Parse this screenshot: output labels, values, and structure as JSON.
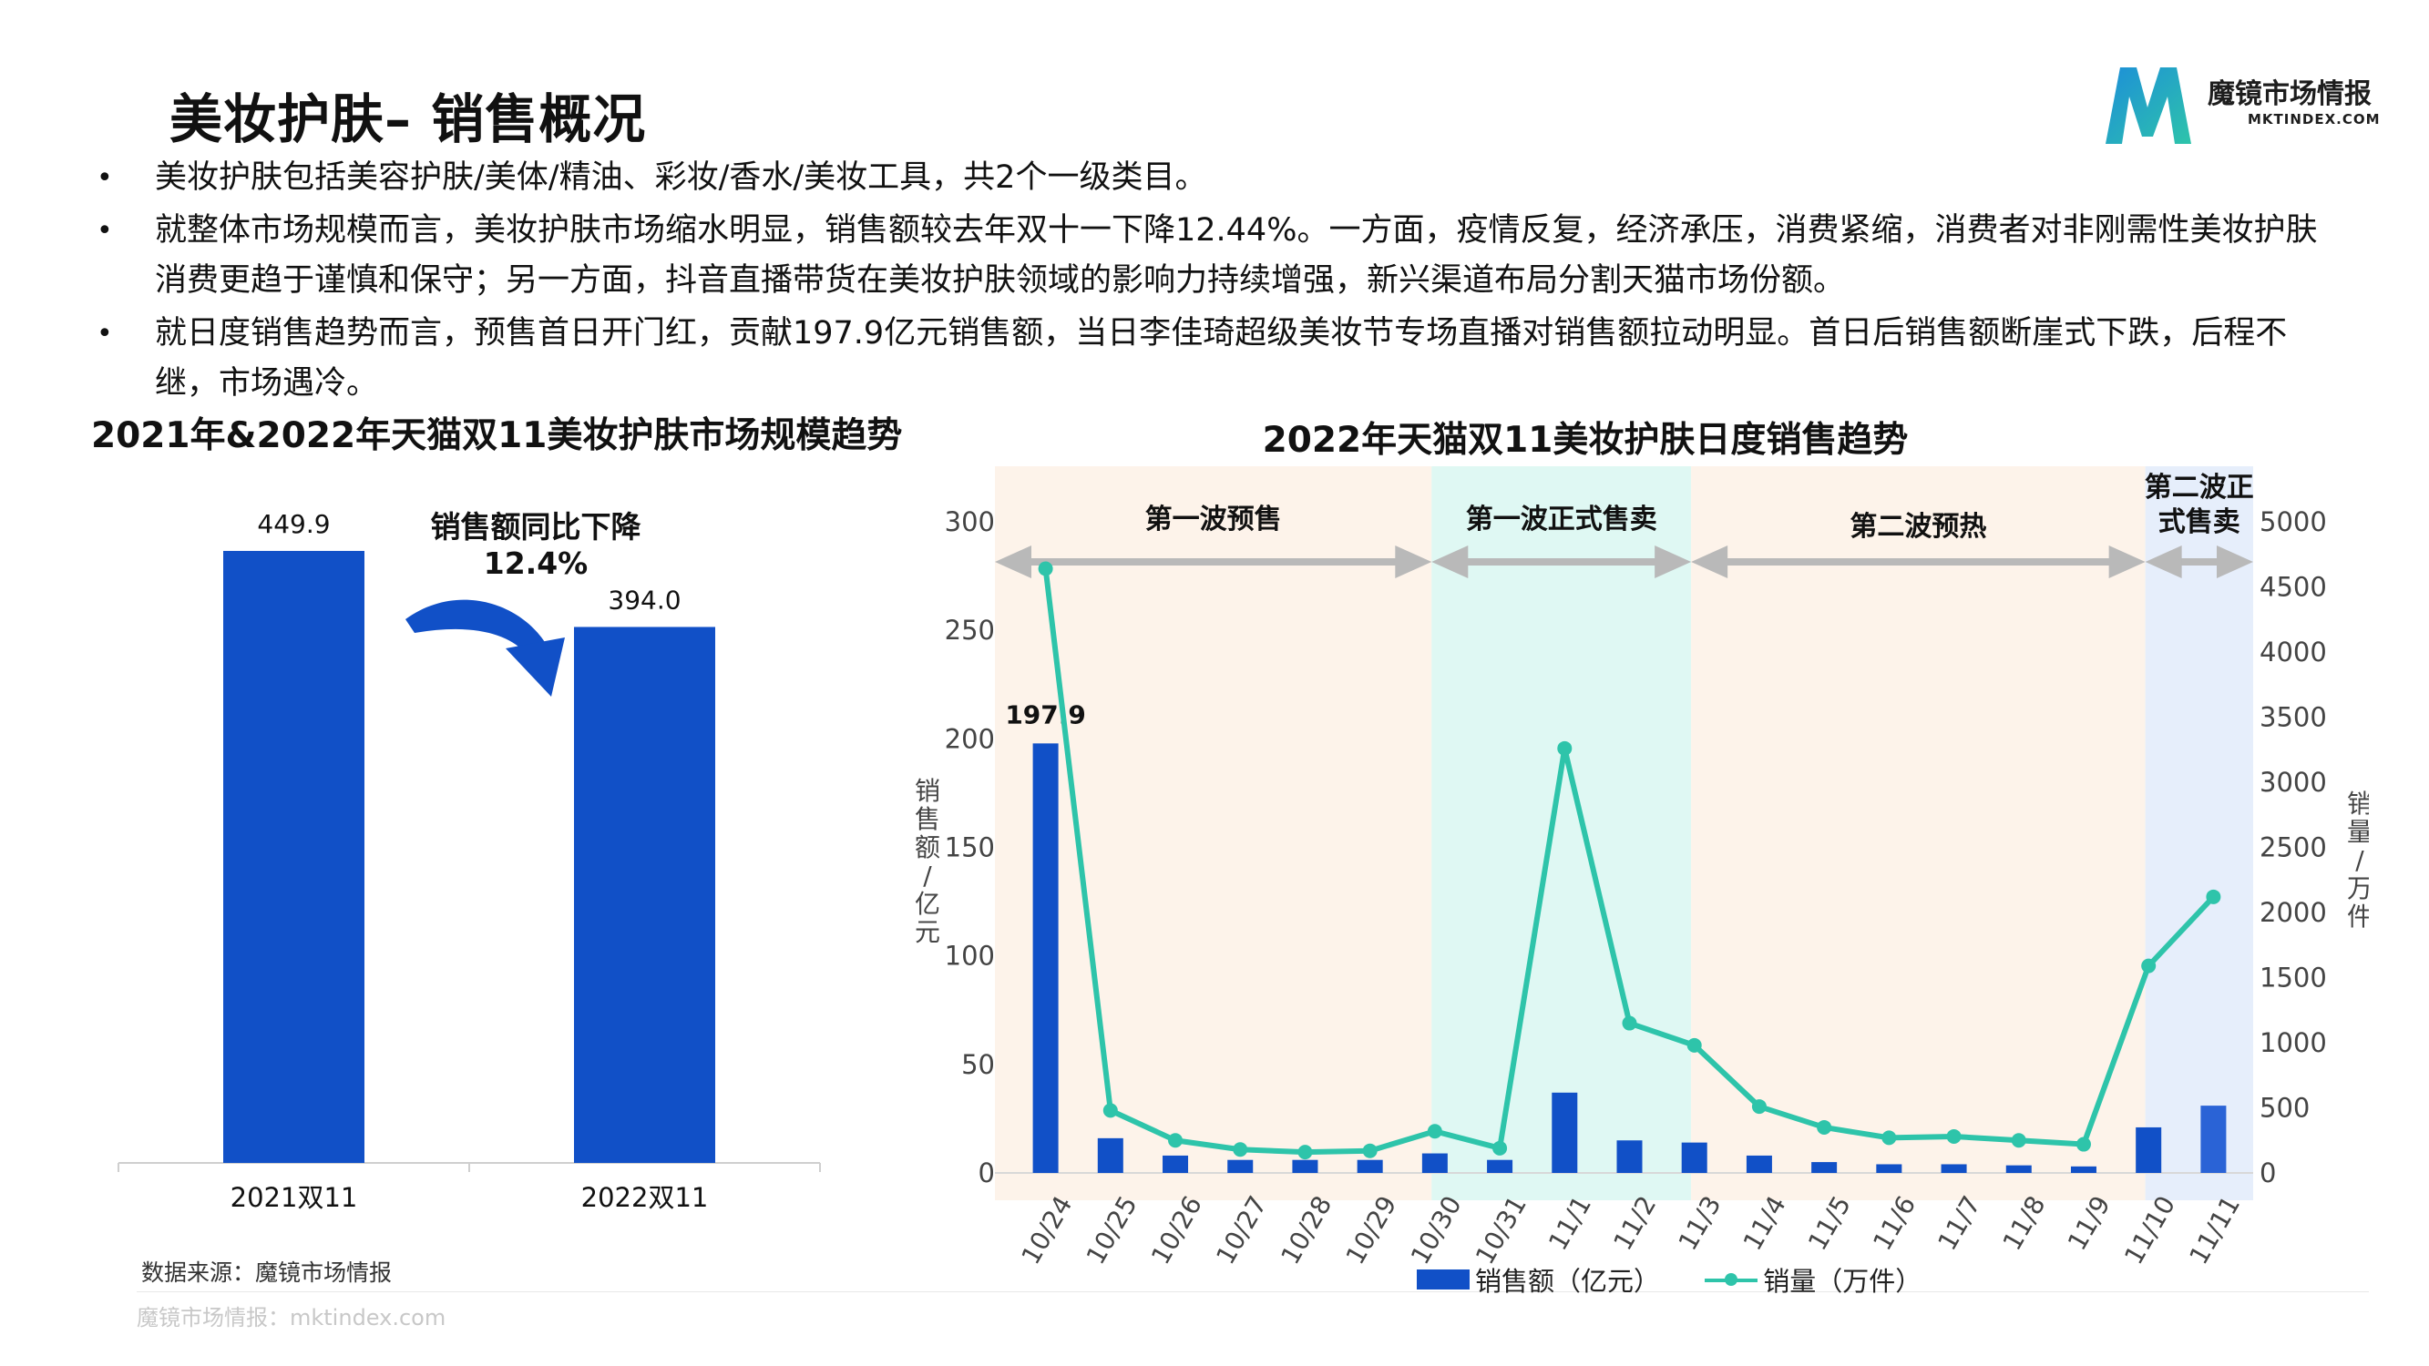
{
  "header": {
    "title": "美妆护肤– 销售概况",
    "logo_cn": "魔镜市场情报",
    "logo_en": "MKTINDEX.COM"
  },
  "bullets": [
    "美妆护肤包括美容护肤/美体/精油、彩妆/香水/美妆工具，共2个一级类目。",
    "就整体市场规模而言，美妆护肤市场缩水明显，销售额较去年双十一下降12.44%。一方面，疫情反复，经济承压，消费紧缩，消费者对非刚需性美妆护肤消费更趋于谨慎和保守；另一方面，抖音直播带货在美妆护肤领域的影响力持续增强，新兴渠道布局分割天猫市场份额。",
    "就日度销售趋势而言，预售首日开门红，贡献197.9亿元销售额，当日李佳琦超级美妆节专场直播对销售额拉动明显。首日后销售额断崖式下跌，后程不继，市场遇冷。"
  ],
  "source": "数据来源：魔镜市场情报",
  "footer": "魔镜市场情报：mktindex.com",
  "colors": {
    "bar": "#1150c7",
    "bar_highlight": "#2a63d6",
    "line": "#2ec4aa",
    "arrow": "#b9b9b9",
    "band_presale": "#fdf3ea",
    "band_sale": "#dff8f3",
    "band_sale2": "#e6eefb",
    "curved_arrow": "#1150c7"
  },
  "chart_data": [
    {
      "type": "bar",
      "title": "2021年&2022年天猫双11美妆护肤市场规模趋势",
      "categories": [
        "2021双11",
        "2022双11"
      ],
      "values": [
        449.9,
        394.0
      ],
      "value_labels": [
        "449.9",
        "394.0"
      ],
      "ylim": [
        0,
        480
      ],
      "grid": false,
      "annotation": "销售额同比下降\n12.4%"
    },
    {
      "type": "bar+line",
      "title": "2022年天猫双11美妆护肤日度销售趋势",
      "categories": [
        "10/24",
        "10/25",
        "10/26",
        "10/27",
        "10/28",
        "10/29",
        "10/30",
        "10/31",
        "11/1",
        "11/2",
        "11/3",
        "11/4",
        "11/5",
        "11/6",
        "11/7",
        "11/8",
        "11/9",
        "11/10",
        "11/11"
      ],
      "series": [
        {
          "name": "销售额（亿元）",
          "type": "bar",
          "axis": "left",
          "values": [
            197.9,
            16,
            8,
            6,
            6,
            6,
            9,
            6,
            37,
            15,
            14,
            8,
            5,
            4,
            4,
            3.5,
            3,
            21,
            31
          ]
        },
        {
          "name": "销量（万件）",
          "type": "line",
          "axis": "right",
          "values": [
            4640,
            480,
            250,
            180,
            160,
            170,
            320,
            190,
            3260,
            1150,
            980,
            510,
            350,
            270,
            280,
            250,
            220,
            1590,
            2120
          ]
        }
      ],
      "ylabel_left": "销售额/亿元",
      "ylabel_right": "销量/万件",
      "ylim_left": [
        0,
        300
      ],
      "yticks_left": [
        0,
        50,
        100,
        150,
        200,
        250,
        300
      ],
      "ylim_right": [
        0,
        5000
      ],
      "yticks_right": [
        0,
        500,
        1000,
        1500,
        2000,
        2500,
        3000,
        3500,
        4000,
        4500,
        5000
      ],
      "data_labels": [
        {
          "category": "10/24",
          "text": "197.9"
        }
      ],
      "phases": [
        {
          "label": "第一波预售",
          "start": "10/24",
          "end": "10/30",
          "band": "band_presale"
        },
        {
          "label": "第一波正式售卖",
          "start": "10/30",
          "end": "11/3",
          "band": "band_sale"
        },
        {
          "label": "第二波预热",
          "start": "11/3",
          "end": "11/10",
          "band": "band_presale"
        },
        {
          "label": "第二波正式售卖",
          "start": "11/10",
          "end": "11/11",
          "band": "band_sale2"
        }
      ],
      "legend": "bottom",
      "grid": false
    }
  ]
}
